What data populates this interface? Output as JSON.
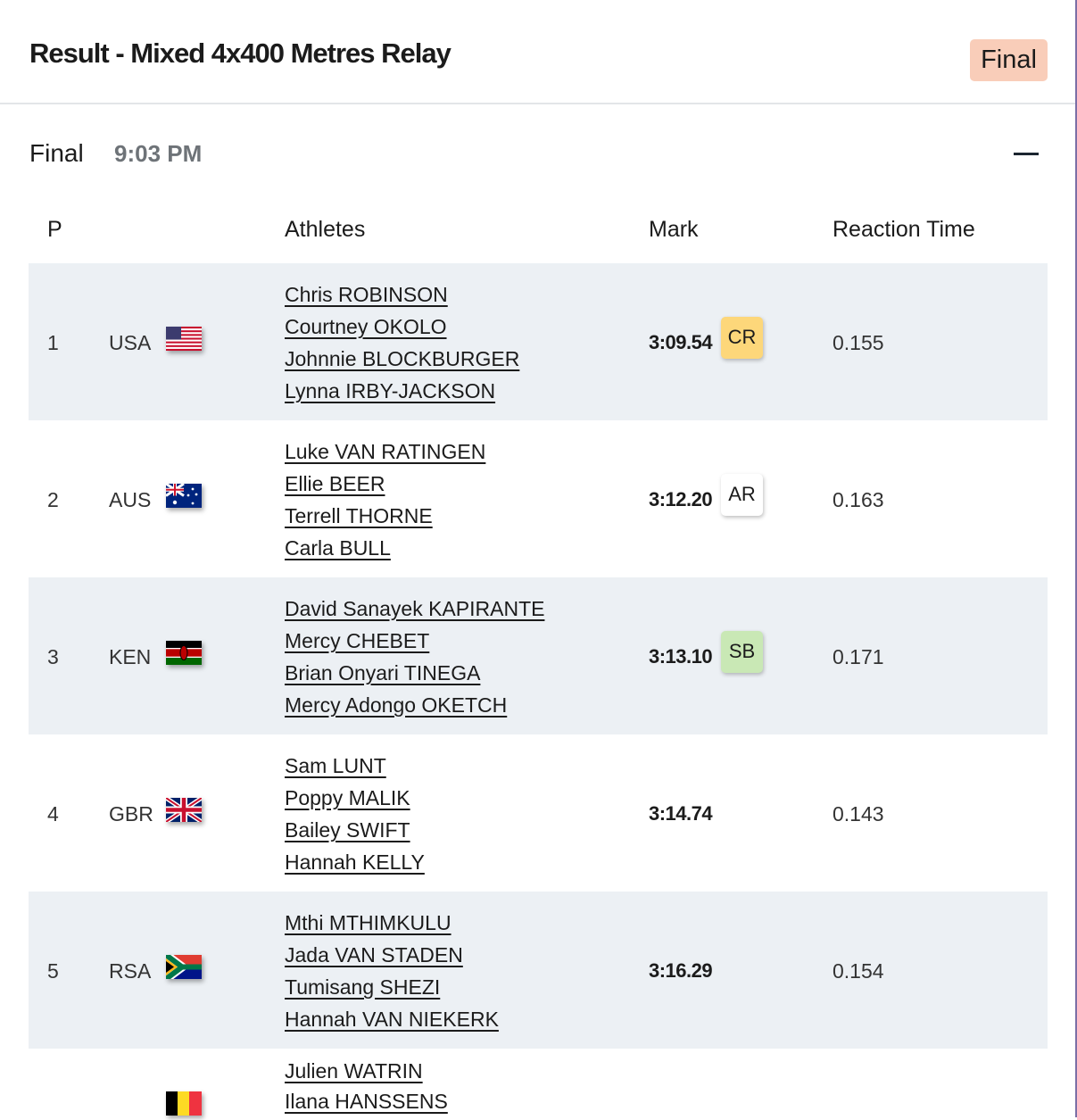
{
  "header": {
    "title": "Result - Mixed 4x400 Metres Relay",
    "status_badge": "Final",
    "status_color": "#f9cdb9"
  },
  "round": {
    "name": "Final",
    "time": "9:03 PM",
    "collapse_icon": "minus-icon"
  },
  "table": {
    "columns": [
      "P",
      "Athletes",
      "Mark",
      "Reaction Time"
    ],
    "rows": [
      {
        "place": "1",
        "country": "USA",
        "flag": "flag-usa",
        "athletes": [
          "Chris ROBINSON",
          "Courtney OKOLO",
          "Johnnie BLOCKBURGER",
          "Lynna IRBY-JACKSON"
        ],
        "mark": "3:09.54",
        "record": "CR",
        "record_color": "#fdd77a",
        "reaction": "0.155"
      },
      {
        "place": "2",
        "country": "AUS",
        "flag": "flag-aus",
        "athletes": [
          "Luke VAN RATINGEN",
          "Ellie BEER",
          "Terrell THORNE",
          "Carla BULL"
        ],
        "mark": "3:12.20",
        "record": "AR",
        "record_color": "#ffffff",
        "reaction": "0.163"
      },
      {
        "place": "3",
        "country": "KEN",
        "flag": "flag-ken",
        "athletes": [
          "David Sanayek KAPIRANTE",
          "Mercy CHEBET",
          "Brian Onyari TINEGA",
          "Mercy Adongo OKETCH"
        ],
        "mark": "3:13.10",
        "record": "SB",
        "record_color": "#c9e8b5",
        "reaction": "0.171"
      },
      {
        "place": "4",
        "country": "GBR",
        "flag": "flag-gbr",
        "athletes": [
          "Sam LUNT",
          "Poppy MALIK",
          "Bailey SWIFT",
          "Hannah KELLY"
        ],
        "mark": "3:14.74",
        "record": "",
        "reaction": "0.143"
      },
      {
        "place": "5",
        "country": "RSA",
        "flag": "flag-rsa",
        "athletes": [
          "Mthi MTHIMKULU",
          "Jada VAN STADEN",
          "Tumisang SHEZI",
          "Hannah VAN NIEKERK"
        ],
        "mark": "3:16.29",
        "record": "",
        "reaction": "0.154"
      },
      {
        "flag": "flag-bel",
        "athletes": [
          "Julien WATRIN",
          "Ilana HANSSENS"
        ]
      }
    ]
  }
}
